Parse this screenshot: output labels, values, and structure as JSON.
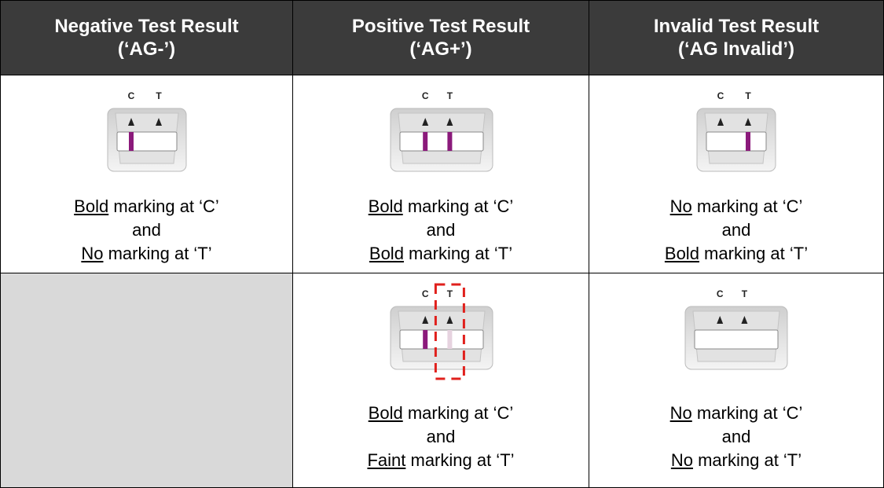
{
  "table": {
    "header": [
      {
        "line1": "Negative Test Result",
        "line2": "(‘AG-’)"
      },
      {
        "line1": "Positive Test Result",
        "line2": "(‘AG+’)"
      },
      {
        "line1": "Invalid Test Result",
        "line2": "(‘AG Invalid’)"
      }
    ],
    "rows": [
      [
        {
          "labels": [
            "C",
            "T"
          ],
          "lines": [
            {
              "underlined": "Bold",
              "text": " marking at ‘C’"
            },
            {
              "text": "and"
            },
            {
              "underlined": "No",
              "text": " marking at ‘T’"
            }
          ]
        },
        {
          "labels": [
            "C",
            "T"
          ],
          "lines": [
            {
              "underlined": "Bold",
              "text": " marking at ‘C’"
            },
            {
              "text": "and"
            },
            {
              "underlined": "Bold",
              "text": " marking at ‘T’"
            }
          ]
        },
        {
          "labels": [
            "C",
            "T"
          ],
          "lines": [
            {
              "underlined": "No",
              "text": " marking at ‘C’"
            },
            {
              "text": "and"
            },
            {
              "underlined": "Bold",
              "text": " marking at ‘T’"
            }
          ]
        }
      ],
      [
        null,
        {
          "labels": [
            "C",
            "T"
          ],
          "lines": [
            {
              "underlined": "Bold",
              "text": " marking at ‘C’"
            },
            {
              "text": "and"
            },
            {
              "underlined": "Faint",
              "text": " marking at ‘T’"
            }
          ]
        },
        {
          "labels": [
            "C",
            "T"
          ],
          "lines": [
            {
              "underlined": "No",
              "text": " marking at ‘C’"
            },
            {
              "text": "and"
            },
            {
              "underlined": "No",
              "text": " marking at ‘T’"
            }
          ]
        }
      ]
    ]
  }
}
